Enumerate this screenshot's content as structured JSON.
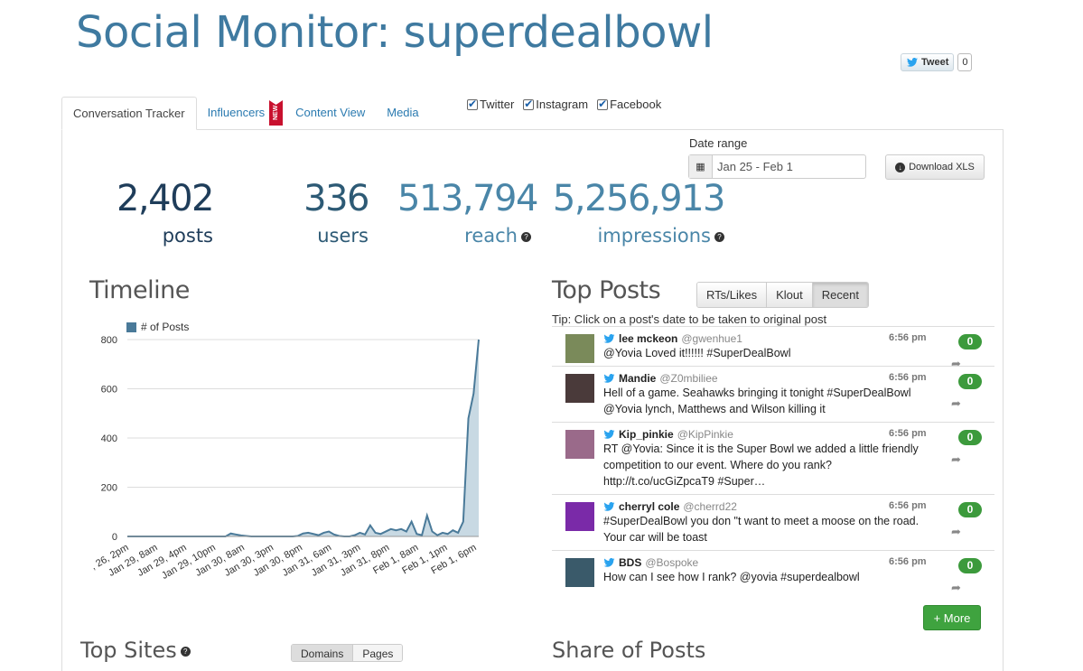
{
  "page": {
    "title": "Social Monitor: superdealbowl"
  },
  "tweet_widget": {
    "label": "Tweet",
    "count": "0"
  },
  "tabs": [
    {
      "label": "Conversation Tracker",
      "active": true
    },
    {
      "label": "Influencers",
      "badge": "NEW"
    },
    {
      "label": "Content View"
    },
    {
      "label": "Media"
    }
  ],
  "filters": [
    {
      "label": "Twitter",
      "checked": true
    },
    {
      "label": "Instagram",
      "checked": true
    },
    {
      "label": "Facebook",
      "checked": true
    }
  ],
  "date_range": {
    "label": "Date range",
    "value": "Jan 25 - Feb 1"
  },
  "download": {
    "label": "Download XLS"
  },
  "stats": [
    {
      "value": "2,402",
      "label": "posts",
      "color": "#1f3d5a"
    },
    {
      "value": "336",
      "label": "users",
      "color": "#2d5a75"
    },
    {
      "value": "513,794",
      "label": "reach",
      "color": "#4a86a8",
      "help": "?"
    },
    {
      "value": "5,256,913",
      "label": "impressions",
      "color": "#4a86a8",
      "help": "?"
    }
  ],
  "timeline": {
    "title": "Timeline",
    "legend": "# of Posts"
  },
  "chart_data": {
    "type": "area",
    "series": [
      {
        "name": "# of Posts",
        "values": [
          0,
          0,
          0,
          0,
          0,
          0,
          0,
          0,
          0,
          0,
          0,
          0,
          0,
          0,
          0,
          0,
          0,
          0,
          0,
          0,
          12,
          8,
          4,
          2,
          0,
          0,
          0,
          0,
          0,
          0,
          0,
          0,
          0,
          2,
          12,
          15,
          10,
          5,
          15,
          20,
          8,
          2,
          0,
          0,
          5,
          15,
          8,
          45,
          15,
          10,
          20,
          30,
          25,
          30,
          20,
          60,
          10,
          5,
          85,
          20,
          5,
          15,
          10,
          25,
          15,
          60,
          480,
          580,
          800
        ]
      }
    ],
    "x_tick_labels": [
      ", 26, 2pm",
      "Jan 29, 8am",
      "Jan 29, 4pm",
      "Jan 29, 10pm",
      "Jan 30, 8am",
      "Jan 30, 3pm",
      "Jan 30, 8pm",
      "Jan 31, 6am",
      "Jan 31, 3pm",
      "Jan 31, 8pm",
      "Feb 1, 8am",
      "Feb 1, 1pm",
      "Feb 1, 6pm"
    ],
    "y_ticks": [
      0,
      200,
      400,
      600,
      800
    ],
    "ylim": [
      0,
      800
    ],
    "colors": {
      "line": "#4a7a99",
      "fill": "#c8d9e3"
    }
  },
  "top_posts": {
    "title": "Top Posts",
    "sort_buttons": [
      {
        "label": "RTs/Likes"
      },
      {
        "label": "Klout"
      },
      {
        "label": "Recent",
        "active": true
      }
    ],
    "tip": "Tip: Click on a post's date to be taken to original post",
    "posts": [
      {
        "name": "lee mckeon",
        "handle": "@gwenhue1",
        "time": "6:56 pm",
        "text": "@Yovia Loved it!!!!!! #SuperDealBowl",
        "count": "0",
        "avatar_color": "#7a8a5a"
      },
      {
        "name": "Mandie",
        "handle": "@Z0mbiliee",
        "time": "6:56 pm",
        "text": "Hell of a game. Seahawks bringing it tonight #SuperDealBowl @Yovia lynch, Matthews and Wilson killing it",
        "count": "0",
        "avatar_color": "#4a3a3a"
      },
      {
        "name": "Kip_pinkie",
        "handle": "@KipPinkie",
        "time": "6:56 pm",
        "text": "RT @Yovia: Since it is the Super Bowl we added a little friendly competition to our event. Where do you rank? http://t.co/ucGiZpcaT9 #Super…",
        "count": "0",
        "avatar_color": "#9a6a8a"
      },
      {
        "name": "cherryl cole",
        "handle": "@cherrd22",
        "time": "6:56 pm",
        "text": "#SuperDealBowl you don \"t want to meet a moose on the road. Your car will be toast",
        "count": "0",
        "avatar_color": "#7a2aa8"
      },
      {
        "name": "BDS",
        "handle": "@Bospoke",
        "time": "6:56 pm",
        "text": "How can I see how I rank? @yovia #superdealbowl",
        "count": "0",
        "avatar_color": "#3a5a6a"
      }
    ],
    "more_label": "+ More"
  },
  "top_sites": {
    "title": "Top Sites",
    "buttons": [
      {
        "label": "Domains"
      },
      {
        "label": "Pages"
      }
    ]
  },
  "share_of_posts": {
    "title": "Share of Posts"
  }
}
